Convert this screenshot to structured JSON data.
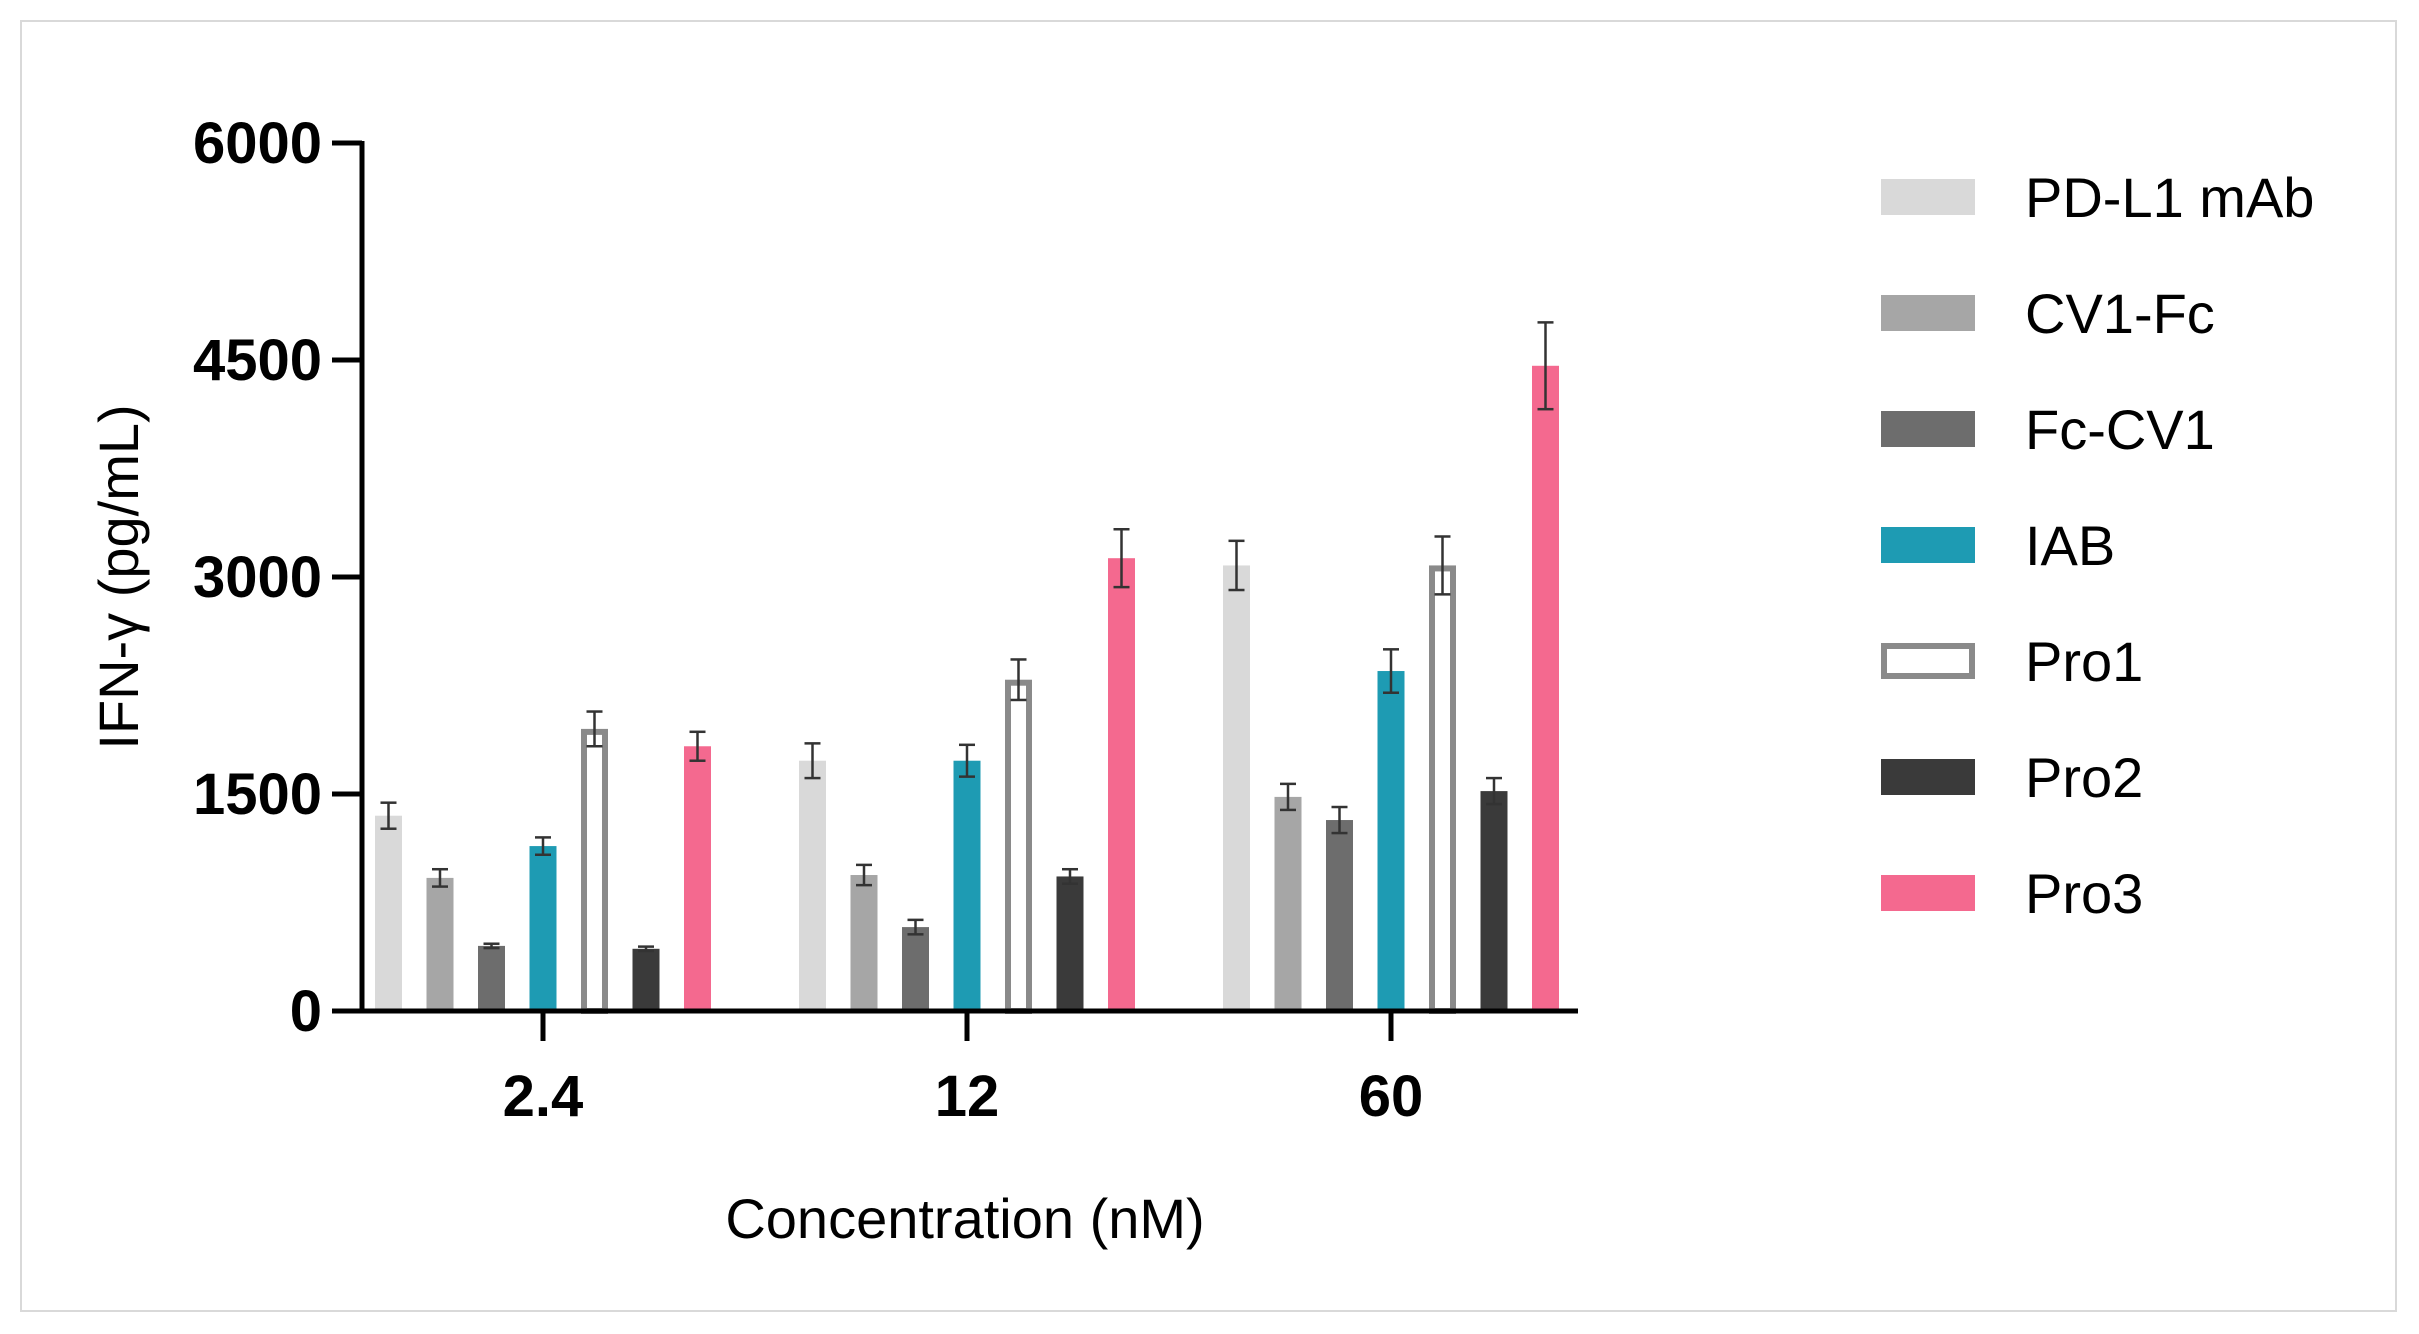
{
  "chart_data": {
    "type": "bar",
    "title": "",
    "xlabel": "Concentration (nM)",
    "ylabel": "IFN-γ (pg/mL)",
    "ylim": [
      0,
      6000
    ],
    "yticks": [
      "0",
      "1500",
      "3000",
      "4500",
      "6000"
    ],
    "categories": [
      "2.4",
      "12",
      "60"
    ],
    "legend_position": "right",
    "series": [
      {
        "name": "PD-L1 mAb",
        "color": "#d9d9d9",
        "style": "filled",
        "values": [
          1350,
          1730,
          3080
        ],
        "errors": [
          90,
          120,
          170
        ]
      },
      {
        "name": "CV1-Fc",
        "color": "#a6a6a6",
        "style": "filled",
        "values": [
          920,
          940,
          1480
        ],
        "errors": [
          60,
          70,
          90
        ]
      },
      {
        "name": "Fc-CV1",
        "color": "#6d6d6d",
        "style": "filled",
        "values": [
          450,
          580,
          1320
        ],
        "errors": [
          15,
          50,
          90
        ]
      },
      {
        "name": "IAB",
        "color": "#1e9bb3",
        "style": "filled",
        "values": [
          1140,
          1730,
          2350
        ],
        "errors": [
          60,
          110,
          150
        ]
      },
      {
        "name": "Pro1",
        "color": "#8a8a8a",
        "style": "hollow",
        "values": [
          1950,
          2290,
          3080
        ],
        "errors": [
          120,
          140,
          200
        ]
      },
      {
        "name": "Pro2",
        "color": "#3a3a3a",
        "style": "filled",
        "values": [
          430,
          930,
          1520
        ],
        "errors": [
          15,
          50,
          90
        ]
      },
      {
        "name": "Pro3",
        "color": "#f4698f",
        "style": "filled",
        "values": [
          1830,
          3130,
          4460
        ],
        "errors": [
          100,
          200,
          300
        ]
      }
    ]
  }
}
